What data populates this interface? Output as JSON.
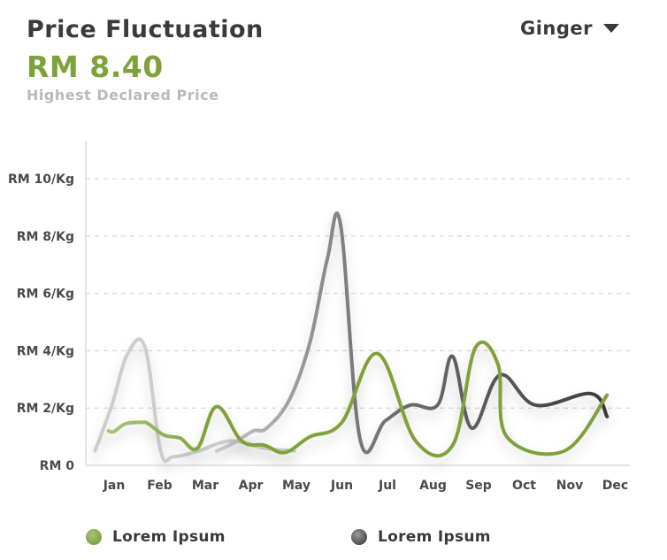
{
  "header": {
    "title": "Price Fluctuation",
    "price": "RM 8.40",
    "subtitle": "Highest Declared Price"
  },
  "selector": {
    "value": "Ginger"
  },
  "colors": {
    "green": "#7ea23a",
    "dark": "#3d3d3d",
    "light_gray": "#c8c8c8"
  },
  "chart_data": {
    "type": "line",
    "y_ticks": [
      {
        "value": 0,
        "label": "RM 0"
      },
      {
        "value": 2,
        "label": "RM 2/Kg"
      },
      {
        "value": 4,
        "label": "RM 4/Kg"
      },
      {
        "value": 6,
        "label": "RM 6/Kg"
      },
      {
        "value": 8,
        "label": "RM 8/Kg"
      },
      {
        "value": 10,
        "label": "RM 10/Kg"
      }
    ],
    "categories": [
      "Jan",
      "Feb",
      "Mar",
      "Apr",
      "May",
      "Jun",
      "Jul",
      "Aug",
      "Sep",
      "Oct",
      "Nov",
      "Dec"
    ],
    "ylim": [
      0,
      11
    ],
    "grid": "horizontal dashed",
    "series": [
      {
        "name": "Lorem Ipsum",
        "color": "green",
        "points": [
          [
            0.88,
            1.2
          ],
          [
            1.0,
            1.18
          ],
          [
            1.25,
            1.45
          ],
          [
            1.6,
            1.5
          ],
          [
            1.75,
            1.45
          ],
          [
            2.1,
            1.05
          ],
          [
            2.45,
            0.95
          ],
          [
            2.83,
            0.6
          ],
          [
            3.25,
            2.05
          ],
          [
            3.8,
            0.85
          ],
          [
            4.3,
            0.7
          ],
          [
            4.75,
            0.45
          ],
          [
            5.3,
            1.0
          ],
          [
            6.0,
            1.5
          ],
          [
            6.78,
            3.9
          ],
          [
            7.62,
            0.85
          ],
          [
            8.43,
            0.7
          ],
          [
            8.93,
            4.1
          ],
          [
            9.43,
            3.5
          ],
          [
            9.62,
            1.0
          ],
          [
            10.88,
            0.5
          ],
          [
            11.82,
            2.45
          ]
        ]
      },
      {
        "name": "Lorem Ipsum",
        "color": "dark",
        "points": [
          [
            3.25,
            0.5
          ],
          [
            3.65,
            0.8
          ],
          [
            4.05,
            1.2
          ],
          [
            4.35,
            1.3
          ],
          [
            4.85,
            2.3
          ],
          [
            5.3,
            4.3
          ],
          [
            5.68,
            7.2
          ],
          [
            5.97,
            8.4
          ],
          [
            6.4,
            0.9
          ],
          [
            6.95,
            1.55
          ],
          [
            7.5,
            2.1
          ],
          [
            8.1,
            2.1
          ],
          [
            8.43,
            3.8
          ],
          [
            8.85,
            1.3
          ],
          [
            9.47,
            3.15
          ],
          [
            10.25,
            2.1
          ],
          [
            11.47,
            2.5
          ],
          [
            11.82,
            1.7
          ]
        ]
      },
      {
        "color": "light_gray",
        "points": [
          [
            0.58,
            0.5
          ],
          [
            0.95,
            2.1
          ],
          [
            1.3,
            3.9
          ],
          [
            1.68,
            4.1
          ],
          [
            2.02,
            0.5
          ],
          [
            2.3,
            0.3
          ],
          [
            2.85,
            0.5
          ],
          [
            3.55,
            0.85
          ],
          [
            4.3,
            0.6
          ],
          [
            4.95,
            0.5
          ]
        ]
      }
    ]
  },
  "legend": [
    {
      "label": "Lorem Ipsum",
      "color": "green"
    },
    {
      "label": "Lorem Ipsum",
      "color": "dark"
    }
  ]
}
